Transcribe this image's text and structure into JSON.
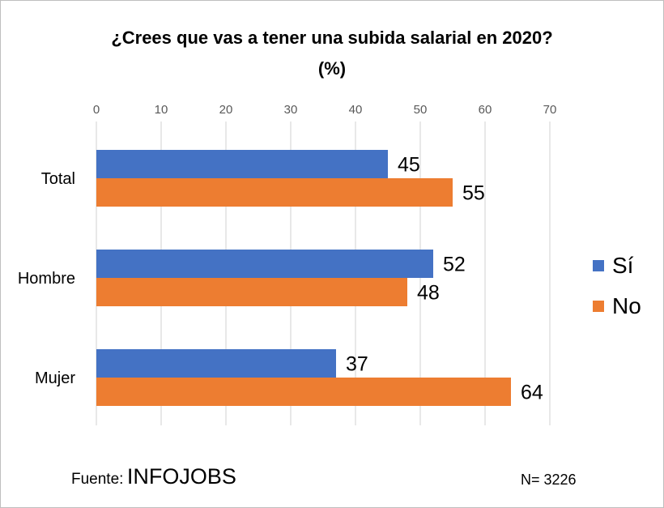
{
  "chart_data": {
    "type": "bar",
    "orientation": "horizontal",
    "title": "¿Crees que vas a tener una subida salarial en 2020?",
    "subtitle": "(%)",
    "categories": [
      "Total",
      "Hombre",
      "Mujer"
    ],
    "series": [
      {
        "name": "Sí",
        "values": [
          45,
          52,
          37
        ],
        "color": "#4472C4"
      },
      {
        "name": "No",
        "values": [
          55,
          48,
          64
        ],
        "color": "#ED7D31"
      }
    ],
    "xlim": [
      0,
      70
    ],
    "x_ticks": [
      0,
      10,
      20,
      30,
      40,
      50,
      60,
      70
    ],
    "x_axis_position": "top",
    "grid": true,
    "data_labels": true,
    "legend_position": "right"
  },
  "footer": {
    "source_label": "Fuente:",
    "source_value": "INFOJOBS",
    "n_label": "N= 3226"
  }
}
